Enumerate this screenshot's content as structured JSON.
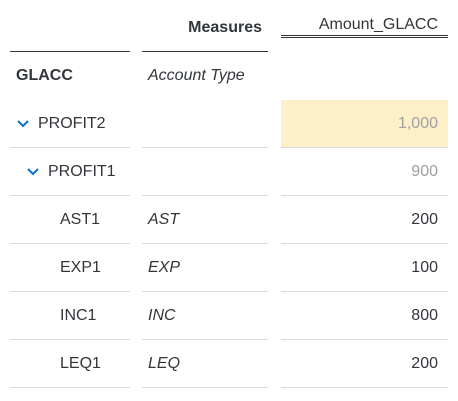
{
  "table": {
    "header": {
      "measures_label": "Measures",
      "amount_label": "Amount_GLACC",
      "dimension_label": "GLACC",
      "attribute_label": "Account Type"
    },
    "rows": [
      {
        "member": "PROFIT2",
        "attr": "",
        "value": "1,000",
        "level": 0,
        "expandable": true,
        "highlighted": true,
        "total": true
      },
      {
        "member": "PROFIT1",
        "attr": "",
        "value": "900",
        "level": 1,
        "expandable": true,
        "highlighted": false,
        "total": true
      },
      {
        "member": "AST1",
        "attr": "AST",
        "value": "200",
        "level": 2,
        "expandable": false,
        "highlighted": false,
        "total": false
      },
      {
        "member": "EXP1",
        "attr": "EXP",
        "value": "100",
        "level": 2,
        "expandable": false,
        "highlighted": false,
        "total": false
      },
      {
        "member": "INC1",
        "attr": "INC",
        "value": "800",
        "level": 2,
        "expandable": false,
        "highlighted": false,
        "total": false
      },
      {
        "member": "LEQ1",
        "attr": "LEQ",
        "value": "200",
        "level": 2,
        "expandable": false,
        "highlighted": false,
        "total": false
      }
    ]
  },
  "colors": {
    "highlight": "#fdf0c8",
    "toggle": "#0a6ed1",
    "total_text": "#a0a0a0"
  },
  "icons": {
    "expand": "chevron-down-icon"
  }
}
